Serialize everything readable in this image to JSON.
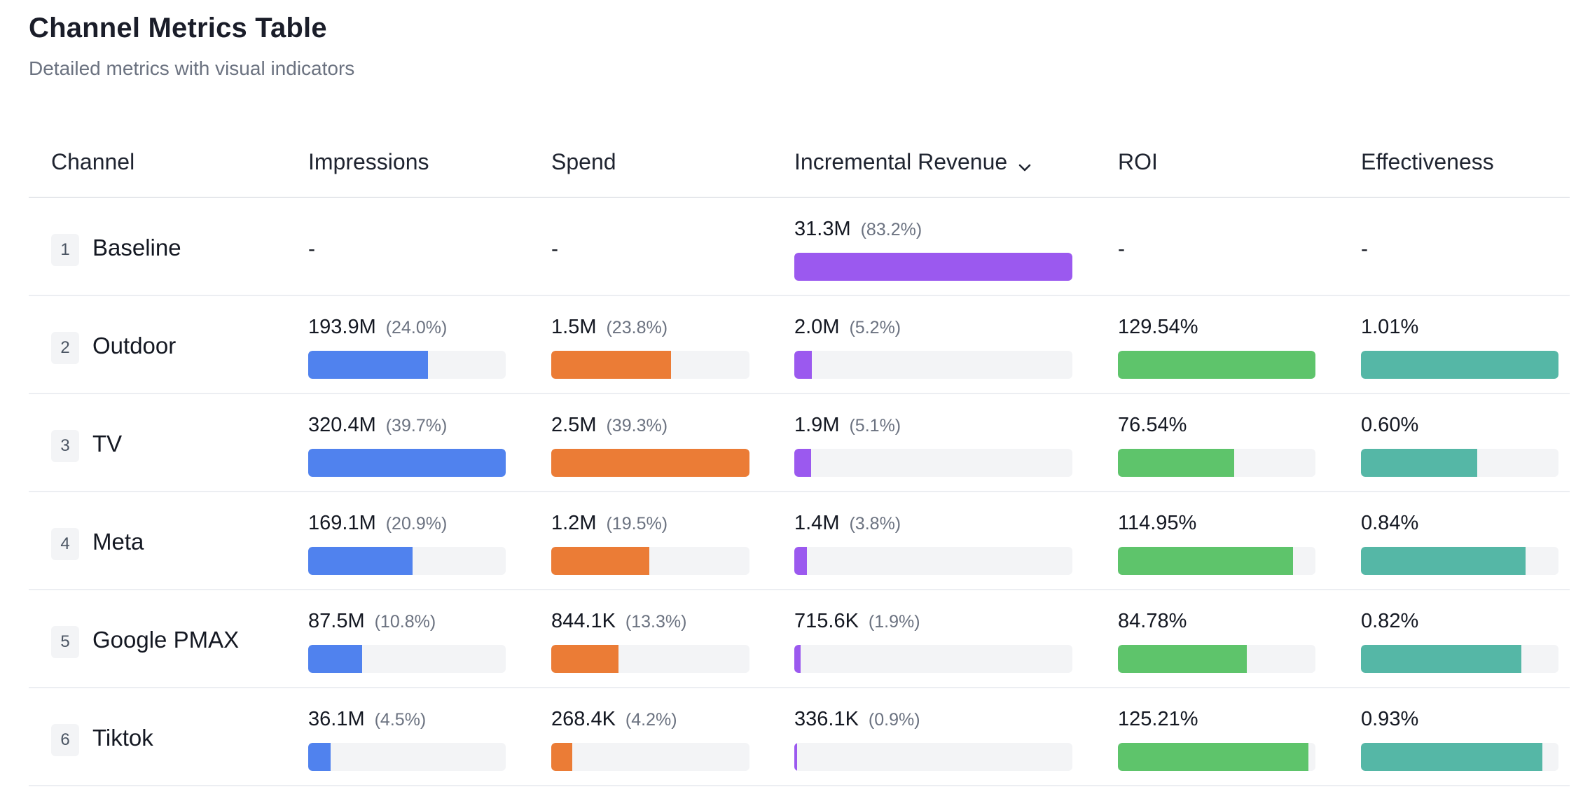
{
  "header": {
    "title": "Channel Metrics Table",
    "subtitle": "Detailed metrics with visual indicators"
  },
  "columns": [
    {
      "key": "channel",
      "label": "Channel"
    },
    {
      "key": "impressions",
      "label": "Impressions"
    },
    {
      "key": "spend",
      "label": "Spend"
    },
    {
      "key": "revenue",
      "label": "Incremental Revenue",
      "sorted": "desc",
      "icon": "chevron-down-icon"
    },
    {
      "key": "roi",
      "label": "ROI"
    },
    {
      "key": "effectiveness",
      "label": "Effectiveness"
    }
  ],
  "colors": {
    "impressions": "#5082ee",
    "spend": "#eb7c36",
    "revenue": "#9b59ef",
    "roi": "#5ec46b",
    "effectiveness": "#55b7a6",
    "track": "#f3f4f6"
  },
  "rows": [
    {
      "rank": "1",
      "channel": "Baseline",
      "impressions": {
        "value": "-",
        "pct": "",
        "fill": null
      },
      "spend": {
        "value": "-",
        "pct": "",
        "fill": null
      },
      "revenue": {
        "value": "31.3M",
        "pct": "(83.2%)",
        "fill": 1.0
      },
      "roi": {
        "value": "-",
        "fill": null
      },
      "effectiveness": {
        "value": "-",
        "fill": null
      }
    },
    {
      "rank": "2",
      "channel": "Outdoor",
      "impressions": {
        "value": "193.9M",
        "pct": "(24.0%)",
        "fill": 0.605
      },
      "spend": {
        "value": "1.5M",
        "pct": "(23.8%)",
        "fill": 0.605
      },
      "revenue": {
        "value": "2.0M",
        "pct": "(5.2%)",
        "fill": 0.062
      },
      "roi": {
        "value": "129.54%",
        "fill": 1.0
      },
      "effectiveness": {
        "value": "1.01%",
        "fill": 1.0
      }
    },
    {
      "rank": "3",
      "channel": "TV",
      "impressions": {
        "value": "320.4M",
        "pct": "(39.7%)",
        "fill": 1.0
      },
      "spend": {
        "value": "2.5M",
        "pct": "(39.3%)",
        "fill": 1.0
      },
      "revenue": {
        "value": "1.9M",
        "pct": "(5.1%)",
        "fill": 0.061
      },
      "roi": {
        "value": "76.54%",
        "fill": 0.59
      },
      "effectiveness": {
        "value": "0.60%",
        "fill": 0.59
      }
    },
    {
      "rank": "4",
      "channel": "Meta",
      "impressions": {
        "value": "169.1M",
        "pct": "(20.9%)",
        "fill": 0.528
      },
      "spend": {
        "value": "1.2M",
        "pct": "(19.5%)",
        "fill": 0.496
      },
      "revenue": {
        "value": "1.4M",
        "pct": "(3.8%)",
        "fill": 0.045
      },
      "roi": {
        "value": "114.95%",
        "fill": 0.887
      },
      "effectiveness": {
        "value": "0.84%",
        "fill": 0.832
      }
    },
    {
      "rank": "5",
      "channel": "Google PMAX",
      "impressions": {
        "value": "87.5M",
        "pct": "(10.8%)",
        "fill": 0.273
      },
      "spend": {
        "value": "844.1K",
        "pct": "(13.3%)",
        "fill": 0.338
      },
      "revenue": {
        "value": "715.6K",
        "pct": "(1.9%)",
        "fill": 0.023
      },
      "roi": {
        "value": "84.78%",
        "fill": 0.654
      },
      "effectiveness": {
        "value": "0.82%",
        "fill": 0.812
      }
    },
    {
      "rank": "6",
      "channel": "Tiktok",
      "impressions": {
        "value": "36.1M",
        "pct": "(4.5%)",
        "fill": 0.113
      },
      "spend": {
        "value": "268.4K",
        "pct": "(4.2%)",
        "fill": 0.107
      },
      "revenue": {
        "value": "336.1K",
        "pct": "(0.9%)",
        "fill": 0.011
      },
      "roi": {
        "value": "125.21%",
        "fill": 0.966
      },
      "effectiveness": {
        "value": "0.93%",
        "fill": 0.92
      }
    }
  ]
}
